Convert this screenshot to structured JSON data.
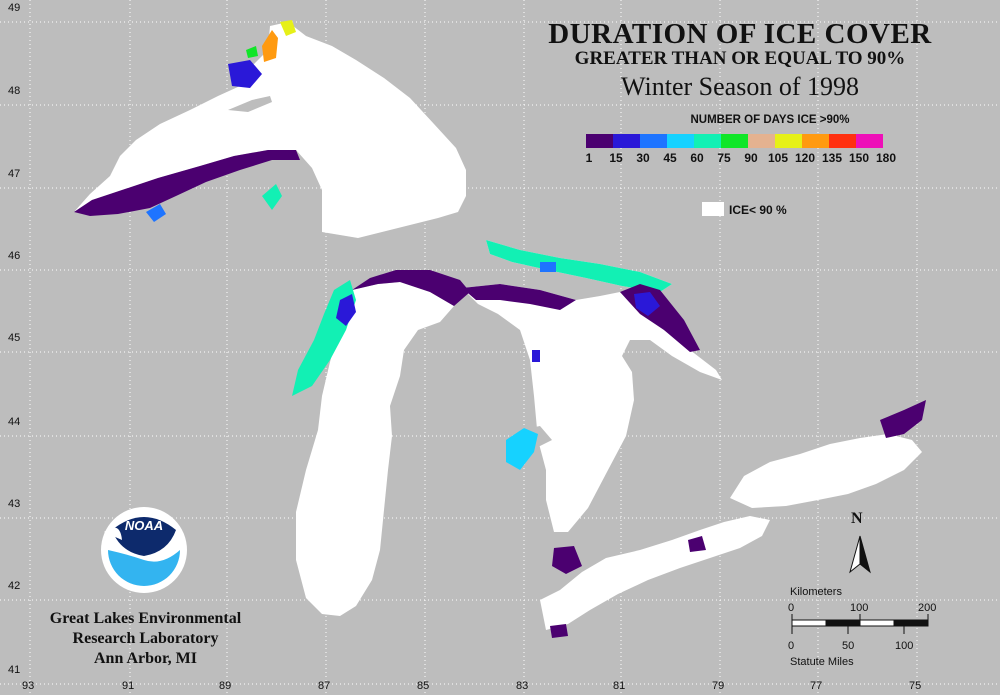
{
  "title": "DURATION OF ICE COVER",
  "subtitle": "GREATER THAN OR EQUAL TO 90%",
  "season": "Winter Season of 1998",
  "legend": {
    "title": "NUMBER OF DAYS ICE >90%",
    "bins": [
      {
        "label": "1",
        "color": "#4b0070"
      },
      {
        "label": "15",
        "color": "#2a18d8"
      },
      {
        "label": "30",
        "color": "#1e74ff"
      },
      {
        "label": "45",
        "color": "#16d2ff"
      },
      {
        "label": "60",
        "color": "#12f0b4"
      },
      {
        "label": "75",
        "color": "#10e628"
      },
      {
        "label": "90",
        "color": "#e4b290"
      },
      {
        "label": "105",
        "color": "#e6f018"
      },
      {
        "label": "120",
        "color": "#ff9a10"
      },
      {
        "label": "135",
        "color": "#ff3010"
      },
      {
        "label": "150",
        "color": "#ee10b8"
      },
      {
        "label": "180",
        "color": ""
      }
    ],
    "ice_below_label": "ICE< 90 %",
    "ice_below_color": "#ffffff"
  },
  "latitudes": [
    "49",
    "48",
    "47",
    "46",
    "45",
    "44",
    "43",
    "42",
    "41"
  ],
  "longitudes": [
    "93",
    "91",
    "89",
    "87",
    "85",
    "83",
    "81",
    "79",
    "77",
    "75"
  ],
  "lab": {
    "line1": "Great Lakes Environmental",
    "line2": "Research Laboratory",
    "line3": "Ann Arbor, MI",
    "logo_text": "NOAA"
  },
  "scale": {
    "km_title": "Kilometers",
    "km_ticks": [
      "0",
      "100",
      "200"
    ],
    "mi_ticks": [
      "0",
      "50",
      "100"
    ],
    "mi_title": "Statute Miles"
  },
  "north_label": "N",
  "colors": {
    "background": "#bdbdbd",
    "lake": "#ffffff",
    "grid": "#ffffff"
  }
}
